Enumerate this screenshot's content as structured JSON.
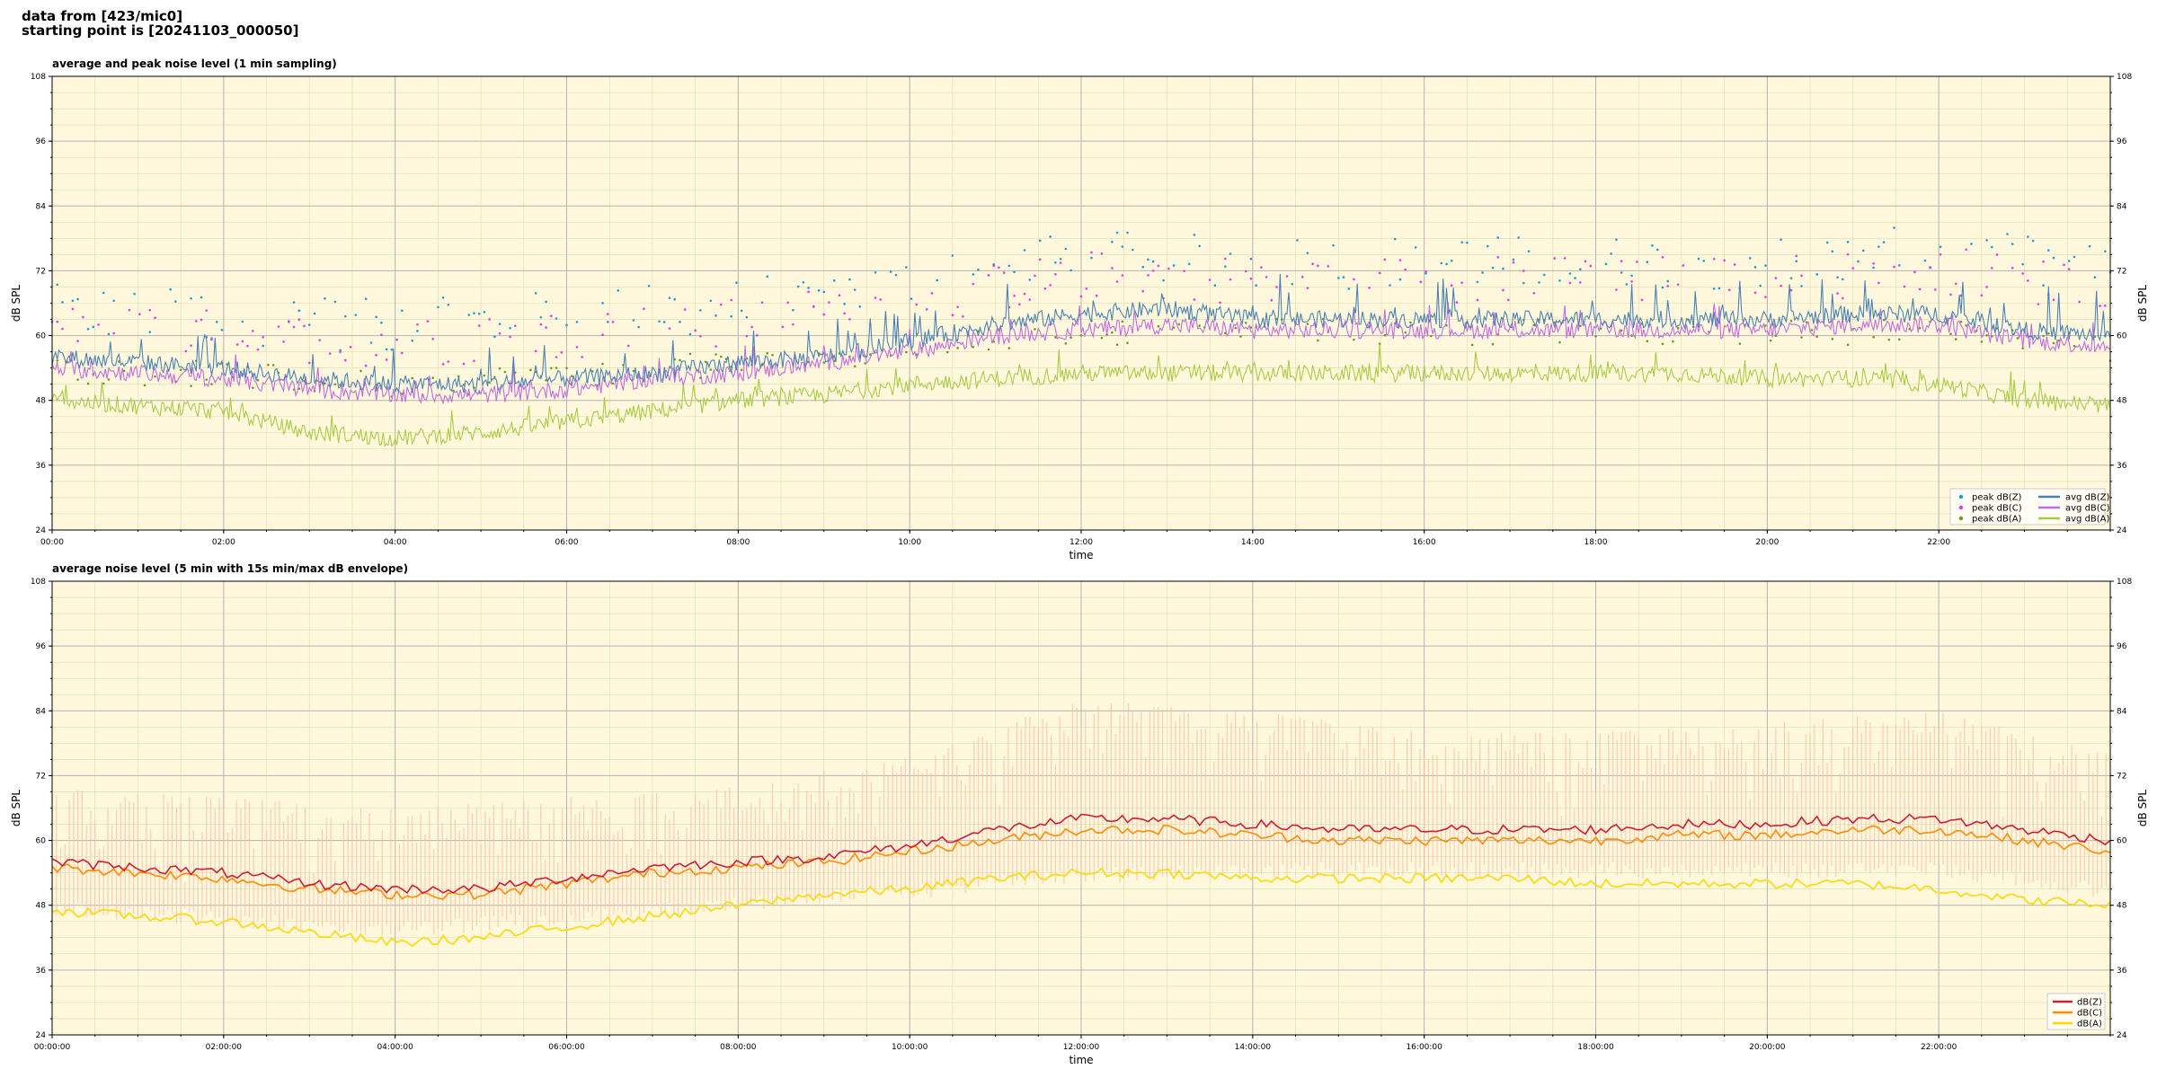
{
  "header": {
    "line1": "data from [423/mic0]",
    "line2": "starting point is [20241103_000050]"
  },
  "colors": {
    "panel_bg": "#fff8dc",
    "peak_Z": "#1f9bd6",
    "peak_C": "#e837e8",
    "peak_A": "#6a9b1f",
    "avg_Z": "#4a82b4",
    "avg_C": "#c36be0",
    "avg_A": "#a8cc47",
    "dB_Z": "#cc1f3a",
    "dB_C": "#ff8c00",
    "dB_A": "#ffd700",
    "envelope": "#f7bfa8"
  },
  "chart_data": [
    {
      "type": "scatter+line",
      "title": "average and peak noise level (1 min sampling)",
      "xlabel": "time",
      "ylabel": "dB SPL",
      "ylim": [
        24,
        108
      ],
      "yticks": [
        24,
        36,
        48,
        60,
        72,
        84,
        96,
        108
      ],
      "xlim_hours": [
        0,
        24
      ],
      "xticks": [
        {
          "h": 0,
          "label": "00:00"
        },
        {
          "h": 2,
          "label": "02:00"
        },
        {
          "h": 4,
          "label": "04:00"
        },
        {
          "h": 6,
          "label": "06:00"
        },
        {
          "h": 8,
          "label": "08:00"
        },
        {
          "h": 10,
          "label": "10:00"
        },
        {
          "h": 12,
          "label": "12:00"
        },
        {
          "h": 14,
          "label": "14:00"
        },
        {
          "h": 16,
          "label": "16:00"
        },
        {
          "h": 18,
          "label": "18:00"
        },
        {
          "h": 20,
          "label": "20:00"
        },
        {
          "h": 22,
          "label": "22:00"
        }
      ],
      "grid": true,
      "legend_position": "bottom-right",
      "legend": [
        {
          "label": "peak dB(Z)",
          "kind": "dot",
          "color_key": "peak_Z"
        },
        {
          "label": "peak dB(C)",
          "kind": "dot",
          "color_key": "peak_C"
        },
        {
          "label": "peak dB(A)",
          "kind": "dot",
          "color_key": "peak_A"
        },
        {
          "label": "avg dB(Z)",
          "kind": "line",
          "color_key": "avg_Z"
        },
        {
          "label": "avg dB(C)",
          "kind": "line",
          "color_key": "avg_C"
        },
        {
          "label": "avg dB(A)",
          "kind": "line",
          "color_key": "avg_A"
        }
      ],
      "series": [
        {
          "name": "avg dB(Z)",
          "kind": "line",
          "color_key": "avg_Z",
          "hours": [
            0,
            1,
            2,
            3,
            4,
            5,
            6,
            7,
            8,
            9,
            10,
            11,
            12,
            13,
            14,
            15,
            16,
            17,
            18,
            19,
            20,
            21,
            22,
            23,
            24
          ],
          "values": [
            56,
            55,
            54,
            52,
            51,
            51,
            52,
            53,
            55,
            56,
            59,
            62,
            64,
            65,
            63,
            63,
            63,
            63,
            63,
            63,
            63,
            64,
            64,
            61,
            60
          ],
          "spike": 8
        },
        {
          "name": "avg dB(C)",
          "kind": "line",
          "color_key": "avg_C",
          "hours": [
            0,
            1,
            2,
            3,
            4,
            5,
            6,
            7,
            8,
            9,
            10,
            11,
            12,
            13,
            14,
            15,
            16,
            17,
            18,
            19,
            20,
            21,
            22,
            23,
            24
          ],
          "values": [
            54,
            53,
            52,
            50,
            49,
            49,
            50,
            52,
            53,
            55,
            57,
            60,
            61,
            62,
            61,
            61,
            61,
            61,
            61,
            61,
            61,
            62,
            62,
            59,
            58
          ],
          "spike": 4
        },
        {
          "name": "avg dB(A)",
          "kind": "line",
          "color_key": "avg_A",
          "hours": [
            0,
            1,
            2,
            3,
            4,
            5,
            6,
            7,
            8,
            9,
            10,
            11,
            12,
            13,
            14,
            15,
            16,
            17,
            18,
            19,
            20,
            21,
            22,
            23,
            24
          ],
          "values": [
            48,
            47,
            46,
            42,
            41,
            42,
            44,
            46,
            48,
            49,
            51,
            52,
            53,
            53,
            53,
            53,
            53,
            53,
            53,
            53,
            52,
            52,
            51,
            48,
            47
          ],
          "spike": 4
        },
        {
          "name": "peak dB(Z)",
          "kind": "scatter",
          "color_key": "peak_Z",
          "hours": [
            0,
            2,
            4,
            6,
            8,
            10,
            12,
            14,
            16,
            18,
            20,
            22,
            24
          ],
          "values": [
            63,
            62,
            60,
            62,
            64,
            68,
            73,
            72,
            72,
            72,
            72,
            74,
            70
          ],
          "spread": 10
        },
        {
          "name": "peak dB(C)",
          "kind": "scatter",
          "color_key": "peak_C",
          "hours": [
            0,
            2,
            4,
            6,
            8,
            10,
            12,
            14,
            16,
            18,
            20,
            22,
            24
          ],
          "values": [
            60,
            59,
            57,
            59,
            61,
            65,
            70,
            69,
            69,
            69,
            69,
            71,
            67
          ],
          "spread": 9
        },
        {
          "name": "peak dB(A)",
          "kind": "scatter",
          "color_key": "peak_A",
          "hours": [
            0,
            2,
            4,
            6,
            8,
            10,
            12,
            14,
            16,
            18,
            20,
            22,
            24
          ],
          "values": [
            53,
            52,
            50,
            52,
            54,
            57,
            60,
            60,
            60,
            60,
            60,
            60,
            57
          ],
          "spread": 5
        }
      ]
    },
    {
      "type": "line+area",
      "title": "average noise level (5 min with 15s min/max dB envelope)",
      "xlabel": "time",
      "ylabel": "dB SPL",
      "ylim": [
        24,
        108
      ],
      "yticks": [
        24,
        36,
        48,
        60,
        72,
        84,
        96,
        108
      ],
      "xlim_hours": [
        0,
        24
      ],
      "xticks": [
        {
          "h": 0,
          "label": "00:00:00"
        },
        {
          "h": 2,
          "label": "02:00:00"
        },
        {
          "h": 4,
          "label": "04:00:00"
        },
        {
          "h": 6,
          "label": "06:00:00"
        },
        {
          "h": 8,
          "label": "08:00:00"
        },
        {
          "h": 10,
          "label": "10:00:00"
        },
        {
          "h": 12,
          "label": "12:00:00"
        },
        {
          "h": 14,
          "label": "14:00:00"
        },
        {
          "h": 16,
          "label": "16:00:00"
        },
        {
          "h": 18,
          "label": "18:00:00"
        },
        {
          "h": 20,
          "label": "20:00:00"
        },
        {
          "h": 22,
          "label": "22:00:00"
        }
      ],
      "grid": true,
      "legend_position": "bottom-right",
      "legend": [
        {
          "label": "dB(Z)",
          "kind": "line",
          "color_key": "dB_Z"
        },
        {
          "label": "dB(C)",
          "kind": "line",
          "color_key": "dB_C"
        },
        {
          "label": "dB(A)",
          "kind": "line",
          "color_key": "dB_A"
        }
      ],
      "series": [
        {
          "name": "dB(Z)",
          "kind": "line",
          "color_key": "dB_Z",
          "hours": [
            0,
            1,
            2,
            3,
            4,
            5,
            6,
            7,
            8,
            9,
            10,
            11,
            12,
            13,
            14,
            15,
            16,
            17,
            18,
            19,
            20,
            21,
            22,
            23,
            24
          ],
          "values": [
            56,
            55,
            54,
            52,
            51,
            51,
            53,
            55,
            56,
            57,
            59,
            62,
            64,
            64,
            63,
            62,
            62,
            62,
            62,
            63,
            63,
            64,
            64,
            62,
            60
          ]
        },
        {
          "name": "dB(C)",
          "kind": "line",
          "color_key": "dB_C",
          "hours": [
            0,
            1,
            2,
            3,
            4,
            5,
            6,
            7,
            8,
            9,
            10,
            11,
            12,
            13,
            14,
            15,
            16,
            17,
            18,
            19,
            20,
            21,
            22,
            23,
            24
          ],
          "values": [
            55,
            54,
            53,
            51,
            50,
            50,
            52,
            54,
            55,
            56,
            58,
            60,
            62,
            62,
            61,
            60,
            60,
            60,
            60,
            61,
            61,
            62,
            62,
            60,
            58
          ]
        },
        {
          "name": "dB(A)",
          "kind": "line",
          "color_key": "dB_A",
          "hours": [
            0,
            1,
            2,
            3,
            4,
            5,
            6,
            7,
            8,
            9,
            10,
            11,
            12,
            13,
            14,
            15,
            16,
            17,
            18,
            19,
            20,
            21,
            22,
            23,
            24
          ],
          "values": [
            47,
            46,
            45,
            43,
            41,
            42,
            44,
            46,
            48,
            50,
            51,
            53,
            54,
            54,
            53,
            53,
            53,
            53,
            52,
            52,
            52,
            52,
            51,
            49,
            48
          ]
        },
        {
          "name": "envelope",
          "kind": "area",
          "color_key": "envelope",
          "hours": [
            0,
            2,
            4,
            6,
            8,
            10,
            12,
            14,
            16,
            18,
            20,
            22,
            24
          ],
          "min": [
            49,
            47,
            45,
            47,
            50,
            52,
            55,
            56,
            56,
            56,
            56,
            56,
            52
          ],
          "max": [
            70,
            68,
            66,
            68,
            70,
            76,
            86,
            84,
            80,
            80,
            82,
            84,
            76
          ]
        }
      ]
    }
  ]
}
